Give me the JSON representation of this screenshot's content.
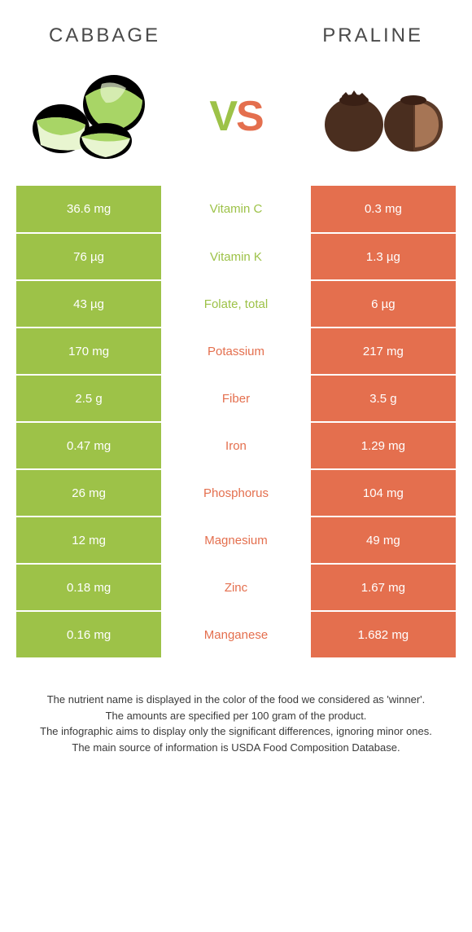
{
  "header": {
    "left": "Cabbage",
    "right": "Praline"
  },
  "vs": {
    "v": "V",
    "s": "S"
  },
  "colors": {
    "green": "#9dc248",
    "orange": "#e46f4e"
  },
  "rows": [
    {
      "left": "36.6 mg",
      "label": "Vitamin C",
      "right": "0.3 mg",
      "winner": "left"
    },
    {
      "left": "76 µg",
      "label": "Vitamin K",
      "right": "1.3 µg",
      "winner": "left"
    },
    {
      "left": "43 µg",
      "label": "Folate, total",
      "right": "6 µg",
      "winner": "left"
    },
    {
      "left": "170 mg",
      "label": "Potassium",
      "right": "217 mg",
      "winner": "right"
    },
    {
      "left": "2.5 g",
      "label": "Fiber",
      "right": "3.5 g",
      "winner": "right"
    },
    {
      "left": "0.47 mg",
      "label": "Iron",
      "right": "1.29 mg",
      "winner": "right"
    },
    {
      "left": "26 mg",
      "label": "Phosphorus",
      "right": "104 mg",
      "winner": "right"
    },
    {
      "left": "12 mg",
      "label": "Magnesium",
      "right": "49 mg",
      "winner": "right"
    },
    {
      "left": "0.18 mg",
      "label": "Zinc",
      "right": "1.67 mg",
      "winner": "right"
    },
    {
      "left": "0.16 mg",
      "label": "Manganese",
      "right": "1.682 mg",
      "winner": "right"
    }
  ],
  "footer": {
    "line1": "The nutrient name is displayed in the color of the food we considered as 'winner'.",
    "line2": "The amounts are specified per 100 gram of the product.",
    "line3": "The infographic aims to display only the significant differences, ignoring minor ones.",
    "line4": "The main source of information is USDA Food Composition Database."
  }
}
